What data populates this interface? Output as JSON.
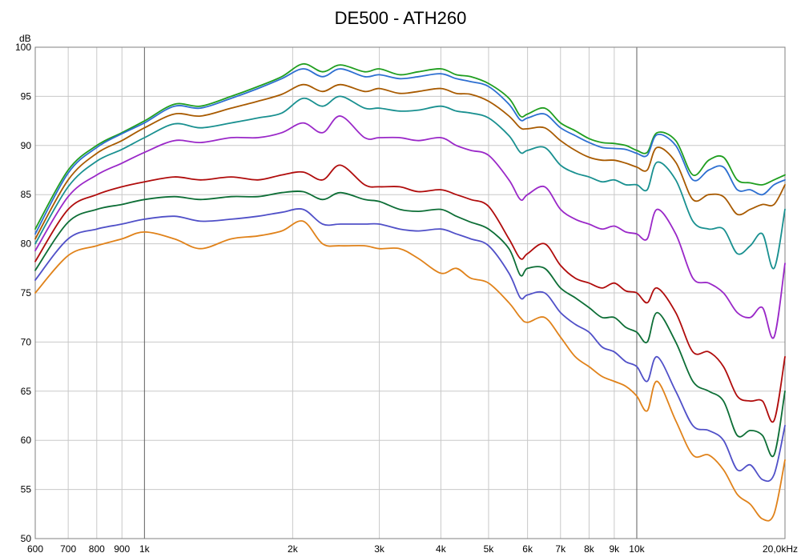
{
  "chart_data": {
    "type": "line",
    "title": "DE500 - ATH260",
    "ylabel": "dB",
    "xlabel": "",
    "x_scale": "log",
    "xlim": [
      600,
      20000
    ],
    "ylim": [
      50,
      100
    ],
    "grid": true,
    "x_ticks": [
      {
        "value": 600,
        "label": "600"
      },
      {
        "value": 700,
        "label": "700"
      },
      {
        "value": 800,
        "label": "800"
      },
      {
        "value": 900,
        "label": "900"
      },
      {
        "value": 1000,
        "label": "1k"
      },
      {
        "value": 2000,
        "label": "2k"
      },
      {
        "value": 3000,
        "label": "3k"
      },
      {
        "value": 4000,
        "label": "4k"
      },
      {
        "value": 5000,
        "label": "5k"
      },
      {
        "value": 6000,
        "label": "6k"
      },
      {
        "value": 7000,
        "label": "7k"
      },
      {
        "value": 8000,
        "label": "8k"
      },
      {
        "value": 9000,
        "label": "9k"
      },
      {
        "value": 10000,
        "label": "10k"
      },
      {
        "value": 20000,
        "label": "20,0kHz"
      }
    ],
    "y_ticks": [
      100,
      95,
      90,
      85,
      80,
      75,
      70,
      65,
      60,
      55,
      50
    ],
    "x": [
      600,
      700,
      800,
      900,
      1000,
      1150,
      1300,
      1500,
      1700,
      1900,
      2100,
      2300,
      2500,
      2800,
      3000,
      3300,
      3600,
      4000,
      4300,
      4600,
      5000,
      5500,
      5800,
      6000,
      6500,
      7000,
      7500,
      8000,
      8500,
      9000,
      9500,
      10000,
      10500,
      11000,
      12000,
      13000,
      14000,
      15000,
      16000,
      17000,
      18000,
      19000,
      20000
    ],
    "series": [
      {
        "color": "#1f9e1f",
        "values": [
          81.5,
          87.5,
          90.0,
          91.3,
          92.5,
          94.2,
          94.0,
          95.0,
          96.0,
          97.0,
          98.3,
          97.5,
          98.2,
          97.5,
          97.8,
          97.2,
          97.5,
          97.8,
          97.2,
          97.0,
          96.3,
          94.8,
          93.0,
          93.2,
          93.8,
          92.3,
          91.5,
          90.7,
          90.3,
          90.2,
          90.0,
          89.5,
          89.3,
          91.3,
          90.5,
          87.0,
          88.5,
          88.8,
          86.5,
          86.2,
          86.0,
          86.5,
          87.0
        ]
      },
      {
        "color": "#2d6fd1",
        "values": [
          81.0,
          87.2,
          89.8,
          91.2,
          92.3,
          94.0,
          93.8,
          94.8,
          95.8,
          96.8,
          97.8,
          97.0,
          97.8,
          97.0,
          97.2,
          96.8,
          97.0,
          97.3,
          96.8,
          96.5,
          96.0,
          94.2,
          92.6,
          92.8,
          93.2,
          91.8,
          91.0,
          90.3,
          89.8,
          89.7,
          89.6,
          89.2,
          89.0,
          91.1,
          90.0,
          86.5,
          87.5,
          87.8,
          85.5,
          85.5,
          85.0,
          86.0,
          86.5
        ]
      },
      {
        "color": "#a85a00",
        "values": [
          80.5,
          86.5,
          89.2,
          90.5,
          91.8,
          93.2,
          93.0,
          93.8,
          94.5,
          95.2,
          96.2,
          95.5,
          96.2,
          95.5,
          95.8,
          95.3,
          95.5,
          95.8,
          95.3,
          95.2,
          94.5,
          93.0,
          91.8,
          91.7,
          91.8,
          90.5,
          89.5,
          88.8,
          88.5,
          88.5,
          88.2,
          87.8,
          87.5,
          89.8,
          88.3,
          84.5,
          85.0,
          84.8,
          83.0,
          83.5,
          84.0,
          84.0,
          86.0
        ]
      },
      {
        "color": "#199090",
        "values": [
          80.0,
          85.8,
          88.4,
          89.6,
          90.8,
          92.2,
          91.8,
          92.3,
          92.8,
          93.3,
          94.8,
          94.0,
          95.0,
          93.8,
          93.8,
          93.5,
          93.6,
          94.0,
          93.5,
          93.3,
          92.8,
          91.0,
          89.3,
          89.5,
          89.8,
          88.0,
          87.2,
          86.8,
          86.3,
          86.5,
          86.0,
          86.0,
          85.5,
          88.3,
          86.5,
          82.3,
          81.5,
          81.5,
          79.0,
          79.8,
          81.0,
          77.5,
          83.5
        ]
      },
      {
        "color": "#9a28c8",
        "values": [
          79.3,
          84.8,
          87.0,
          88.2,
          89.3,
          90.5,
          90.3,
          90.8,
          90.8,
          91.3,
          92.3,
          91.3,
          93.0,
          90.8,
          90.8,
          90.8,
          90.5,
          90.8,
          90.0,
          89.5,
          89.0,
          86.5,
          84.5,
          85.0,
          85.8,
          83.5,
          82.5,
          82.0,
          81.5,
          81.8,
          81.2,
          81.0,
          80.5,
          83.5,
          81.0,
          76.5,
          76.0,
          75.0,
          73.0,
          72.5,
          73.5,
          70.5,
          78.0
        ]
      },
      {
        "color": "#b00c0c",
        "values": [
          78.2,
          83.5,
          85.0,
          85.8,
          86.3,
          86.8,
          86.5,
          86.8,
          86.5,
          87.0,
          87.3,
          86.5,
          88.0,
          86.0,
          85.8,
          85.8,
          85.3,
          85.5,
          85.0,
          84.5,
          83.8,
          80.5,
          78.5,
          79.0,
          80.0,
          77.8,
          76.5,
          76.0,
          75.5,
          76.0,
          75.2,
          75.0,
          74.0,
          75.5,
          73.0,
          69.0,
          69.0,
          67.5,
          64.5,
          64.0,
          64.0,
          62.0,
          68.5
        ]
      },
      {
        "color": "#0d6e36",
        "values": [
          77.3,
          82.2,
          83.5,
          84.0,
          84.5,
          84.8,
          84.5,
          84.8,
          84.8,
          85.2,
          85.3,
          84.5,
          85.2,
          84.5,
          84.3,
          83.5,
          83.3,
          83.5,
          82.8,
          82.2,
          81.5,
          79.5,
          76.8,
          77.5,
          77.5,
          75.5,
          74.5,
          73.5,
          72.5,
          72.5,
          71.5,
          71.0,
          70.0,
          73.0,
          70.0,
          66.0,
          65.0,
          64.0,
          60.5,
          61.0,
          60.5,
          58.5,
          65.0
        ]
      },
      {
        "color": "#5050c8",
        "values": [
          76.3,
          80.5,
          81.5,
          82.0,
          82.5,
          82.8,
          82.3,
          82.5,
          82.8,
          83.2,
          83.5,
          82.0,
          82.0,
          82.0,
          82.0,
          81.5,
          81.3,
          81.5,
          81.0,
          80.5,
          79.8,
          77.0,
          74.5,
          74.8,
          75.0,
          73.0,
          71.8,
          71.0,
          69.5,
          69.0,
          68.0,
          67.5,
          66.0,
          68.5,
          65.0,
          61.5,
          61.0,
          60.0,
          57.0,
          57.5,
          56.0,
          56.5,
          61.5
        ]
      },
      {
        "color": "#e0821a",
        "values": [
          75.0,
          78.8,
          79.8,
          80.5,
          81.2,
          80.5,
          79.5,
          80.5,
          80.8,
          81.3,
          82.3,
          80.0,
          79.8,
          79.8,
          79.5,
          79.5,
          78.5,
          77.0,
          77.5,
          76.5,
          76.0,
          74.0,
          72.5,
          72.0,
          72.5,
          70.5,
          68.5,
          67.5,
          66.5,
          66.0,
          65.5,
          64.5,
          63.0,
          66.0,
          62.0,
          58.5,
          58.5,
          57.0,
          54.5,
          53.5,
          52.0,
          52.5,
          58.0
        ]
      }
    ]
  }
}
